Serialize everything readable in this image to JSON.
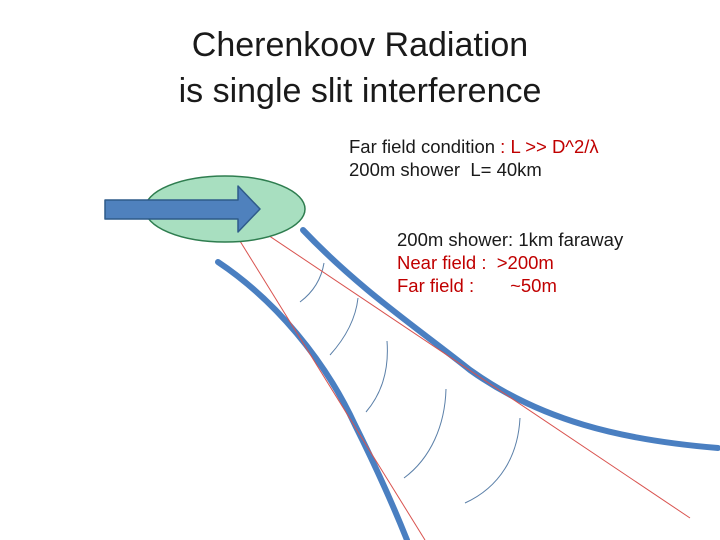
{
  "title": {
    "line1": "Cherenkoov Radiation",
    "line2": "is single slit interference"
  },
  "far_field_note": {
    "condition_label": "Far field condition ",
    "condition_formula": ": L >> D^2/λ",
    "example": "200m shower  L= 40km"
  },
  "shower_note": {
    "line1": "200m shower: 1km faraway",
    "near_field": "Near field :  >200m",
    "far_field": "Far field :       ~50m"
  },
  "colors": {
    "text": "#1a1a1a",
    "accent_red": "#c00000",
    "shower_fill": "#a8dfc0",
    "shower_stroke": "#2e7d4f",
    "arrow_fill": "#4f81bd",
    "arrow_stroke": "#2f5b8a",
    "slit_walls": "#4a7fc1",
    "wavefronts": "#5a7fa8",
    "rays": "#d9534f"
  },
  "icons": {
    "shower": "ellipse",
    "beam": "right-arrow"
  }
}
